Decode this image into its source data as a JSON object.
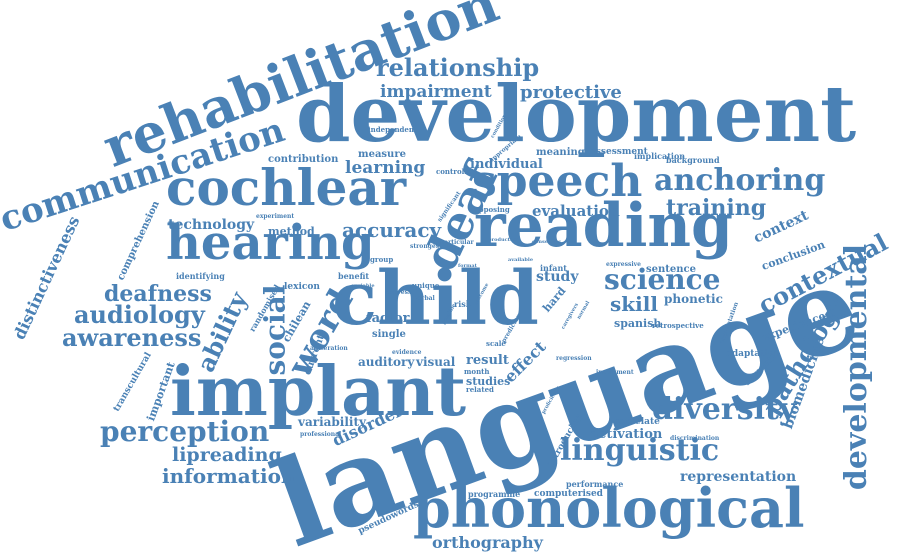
{
  "word_color": "#4a81b5",
  "background_color": "#ffffff",
  "words": {
    "language": "language",
    "development": "development",
    "child": "child",
    "implant": "implant",
    "reading": "reading",
    "rehabilitation": "rehabilitation",
    "phonological": "phonological",
    "cochlear": "cochlear",
    "hearing": "hearing",
    "speech": "speech",
    "deaf": "deaf",
    "communication": "communication",
    "developmental": "developmental",
    "diversity": "diversity",
    "anchoring": "anchoring",
    "relationship": "relationship",
    "linguistic": "linguistic",
    "contextual": "contextual",
    "science": "science",
    "perception": "perception",
    "pathology": "pathology",
    "word": "word",
    "social": "social",
    "ability": "ability",
    "deafness": "deafness",
    "audiology": "audiology",
    "awareness": "awareness",
    "training": "training",
    "accuracy": "accuracy",
    "information": "information",
    "lipreading": "lipreading",
    "protective": "protective",
    "impairment": "impairment",
    "learning": "learning",
    "skill": "skill",
    "orthography": "orthography",
    "distinctiveness": "distinctiveness",
    "evaluation": "evaluation",
    "technology": "technology",
    "disorder": "disorder",
    "biomedicine": "biomedicine",
    "context": "context",
    "effect": "effect",
    "representation": "representation",
    "activation": "activation",
    "factor": "factor",
    "study": "study",
    "variability": "variability",
    "auditory": "auditory",
    "visual": "visual",
    "result": "result",
    "studies": "studies",
    "individual": "individual",
    "experienced": "experienced",
    "method": "method",
    "chilean": "chilean",
    "phonetic": "phonetic",
    "spanish": "spanish",
    "hard": "hard",
    "single": "single",
    "lexicon": "lexicon",
    "conclusion": "conclusion",
    "comprehension": "comprehension",
    "transcultural": "transcultural",
    "important": "important",
    "current": "current",
    "measure": "measure",
    "contribution": "contribution",
    "meaning": "meaning",
    "assessment": "assessment",
    "implication": "implication",
    "background": "background",
    "sentence": "sentence",
    "adaptation": "adaptation",
    "semantic": "semantic",
    "correlate": "correlate",
    "introducing": "introducing",
    "performance": "performance",
    "computerised": "computerised",
    "programme": "programme",
    "pseudowords": "pseudowords",
    "identifying": "identifying",
    "randomised": "randomised",
    "benefit": "benefit",
    "infant": "infant",
    "expressive": "expressive",
    "retrospective": "retrospective",
    "controlled": "controlled",
    "opposing": "opposing",
    "significant": "significant",
    "experiment": "experiment",
    "independent": "independent",
    "appropriate": "appropriate",
    "strongest": "strongest",
    "particular": "particular",
    "group": "group",
    "unique": "unique",
    "express": "express",
    "verbal": "verbal",
    "risk": "risk",
    "scale": "scale",
    "month": "month",
    "related": "related",
    "evidence": "evidence",
    "alliteration": "alliteration",
    "professional": "professional",
    "instrument": "instrument",
    "discrimination": "discrimination",
    "regression": "regression",
    "implantation": "implantation",
    "consensus": "consensus",
    "available": "available",
    "format": "format",
    "variable": "variable",
    "possible": "possible",
    "predictor": "predictor",
    "caregivers": "caregivers",
    "normal": "normal",
    "outcome": "outcome",
    "proficiency": "proficiency",
    "condition": "condition",
    "production": "production"
  }
}
